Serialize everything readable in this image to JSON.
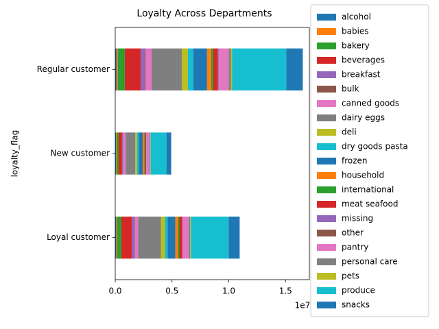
{
  "chart_data": {
    "type": "barh_stacked",
    "title": "Loyalty Across Departments",
    "y_label": "loyalty_flag",
    "x_offset_label": "1e7",
    "categories": [
      "Loyal customer",
      "New customer",
      "Regular customer"
    ],
    "xlim": [
      0,
      17100000
    ],
    "xticks": [
      {
        "value": 0,
        "label": "0.0"
      },
      {
        "value": 5000000,
        "label": "0.5"
      },
      {
        "value": 10000000,
        "label": "1.0"
      },
      {
        "value": 15000000,
        "label": "1.5"
      }
    ],
    "legend": "outside right",
    "series": [
      {
        "name": "alcohol",
        "color": "#1f77b4",
        "values": [
          90000,
          60000,
          120000
        ]
      },
      {
        "name": "babies",
        "color": "#ff7f0e",
        "values": [
          90000,
          60000,
          120000
        ]
      },
      {
        "name": "bakery",
        "color": "#2ca02c",
        "values": [
          360000,
          180000,
          600000
        ]
      },
      {
        "name": "beverages",
        "color": "#d62728",
        "values": [
          910000,
          300000,
          1400000
        ]
      },
      {
        "name": "breakfast",
        "color": "#9467bd",
        "values": [
          240000,
          90000,
          360000
        ]
      },
      {
        "name": "bulk",
        "color": "#8c564b",
        "values": [
          30000,
          20000,
          60000
        ]
      },
      {
        "name": "canned goods",
        "color": "#e377c2",
        "values": [
          300000,
          210000,
          540000
        ]
      },
      {
        "name": "dairy eggs",
        "color": "#7f7f7f",
        "values": [
          2000000,
          850000,
          2660000
        ]
      },
      {
        "name": "deli",
        "color": "#bcbd22",
        "values": [
          360000,
          150000,
          540000
        ]
      },
      {
        "name": "dry goods pasta",
        "color": "#17becf",
        "values": [
          240000,
          150000,
          480000
        ]
      },
      {
        "name": "frozen",
        "color": "#1f77b4",
        "values": [
          670000,
          360000,
          1210000
        ]
      },
      {
        "name": "household",
        "color": "#ff7f0e",
        "values": [
          240000,
          120000,
          360000
        ]
      },
      {
        "name": "international",
        "color": "#2ca02c",
        "values": [
          120000,
          60000,
          180000
        ]
      },
      {
        "name": "meat seafood",
        "color": "#d62728",
        "values": [
          240000,
          120000,
          420000
        ]
      },
      {
        "name": "missing",
        "color": "#9467bd",
        "values": [
          30000,
          20000,
          60000
        ]
      },
      {
        "name": "other",
        "color": "#8c564b",
        "values": [
          20000,
          10000,
          30000
        ]
      },
      {
        "name": "pantry",
        "color": "#e377c2",
        "values": [
          540000,
          270000,
          850000
        ]
      },
      {
        "name": "personal care",
        "color": "#7f7f7f",
        "values": [
          120000,
          60000,
          200000
        ]
      },
      {
        "name": "pets",
        "color": "#bcbd22",
        "values": [
          60000,
          30000,
          100000
        ]
      },
      {
        "name": "produce",
        "color": "#17becf",
        "values": [
          3330000,
          1390000,
          4780000
        ]
      },
      {
        "name": "snacks",
        "color": "#1f77b4",
        "values": [
          970000,
          420000,
          1450000
        ]
      }
    ]
  }
}
